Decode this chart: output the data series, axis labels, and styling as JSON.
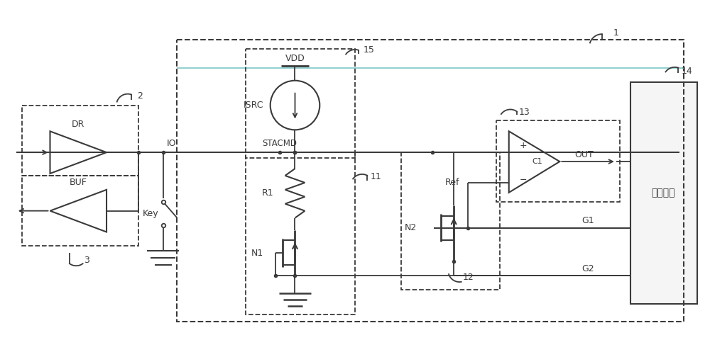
{
  "fig_width": 10.0,
  "fig_height": 4.8,
  "dpi": 100,
  "bg_color": "#ffffff",
  "line_color": "#3a3a3a",
  "teal_color": "#88cccc",
  "labels": {
    "DR": "DR",
    "BUF": "BUF",
    "IO": "IO",
    "STACMD": "STACMD",
    "VDD": "VDD",
    "ISRC": "ISRC",
    "R1": "R1",
    "N1": "N1",
    "N2": "N2",
    "Ref": "Ref",
    "C1": "C1",
    "OUT": "OUT",
    "G1": "G1",
    "G2": "G2",
    "Key": "Key",
    "ctrl": "控制单元",
    "num1": "1",
    "num2": "2",
    "num3": "3",
    "num11": "11",
    "num12": "12",
    "num13": "13",
    "num14": "14",
    "num15": "15"
  }
}
